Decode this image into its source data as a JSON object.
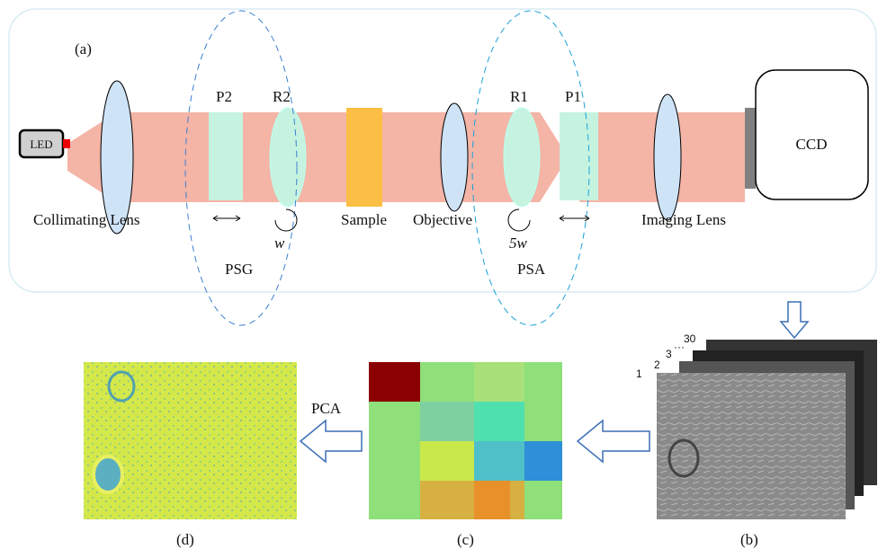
{
  "panel_a": {
    "label": "(a)",
    "led": "LED",
    "p2": "P2",
    "r2": "R2",
    "sample": "Sample",
    "objective": "Objective",
    "r1": "R1",
    "p1": "P1",
    "ccd": "CCD",
    "collimating_lens": "Collimating  Lens",
    "imaging_lens": "Imaging Lens",
    "psg": "PSG",
    "psa": "PSA",
    "psg_rate": "w",
    "psa_rate": "5w"
  },
  "panel_b": {
    "label": "(b)",
    "stack": [
      "1",
      "2",
      "3",
      "···",
      "30"
    ]
  },
  "panel_c": {
    "label": "(c)"
  },
  "panel_d": {
    "label": "(d)",
    "arrow": "PCA"
  }
}
